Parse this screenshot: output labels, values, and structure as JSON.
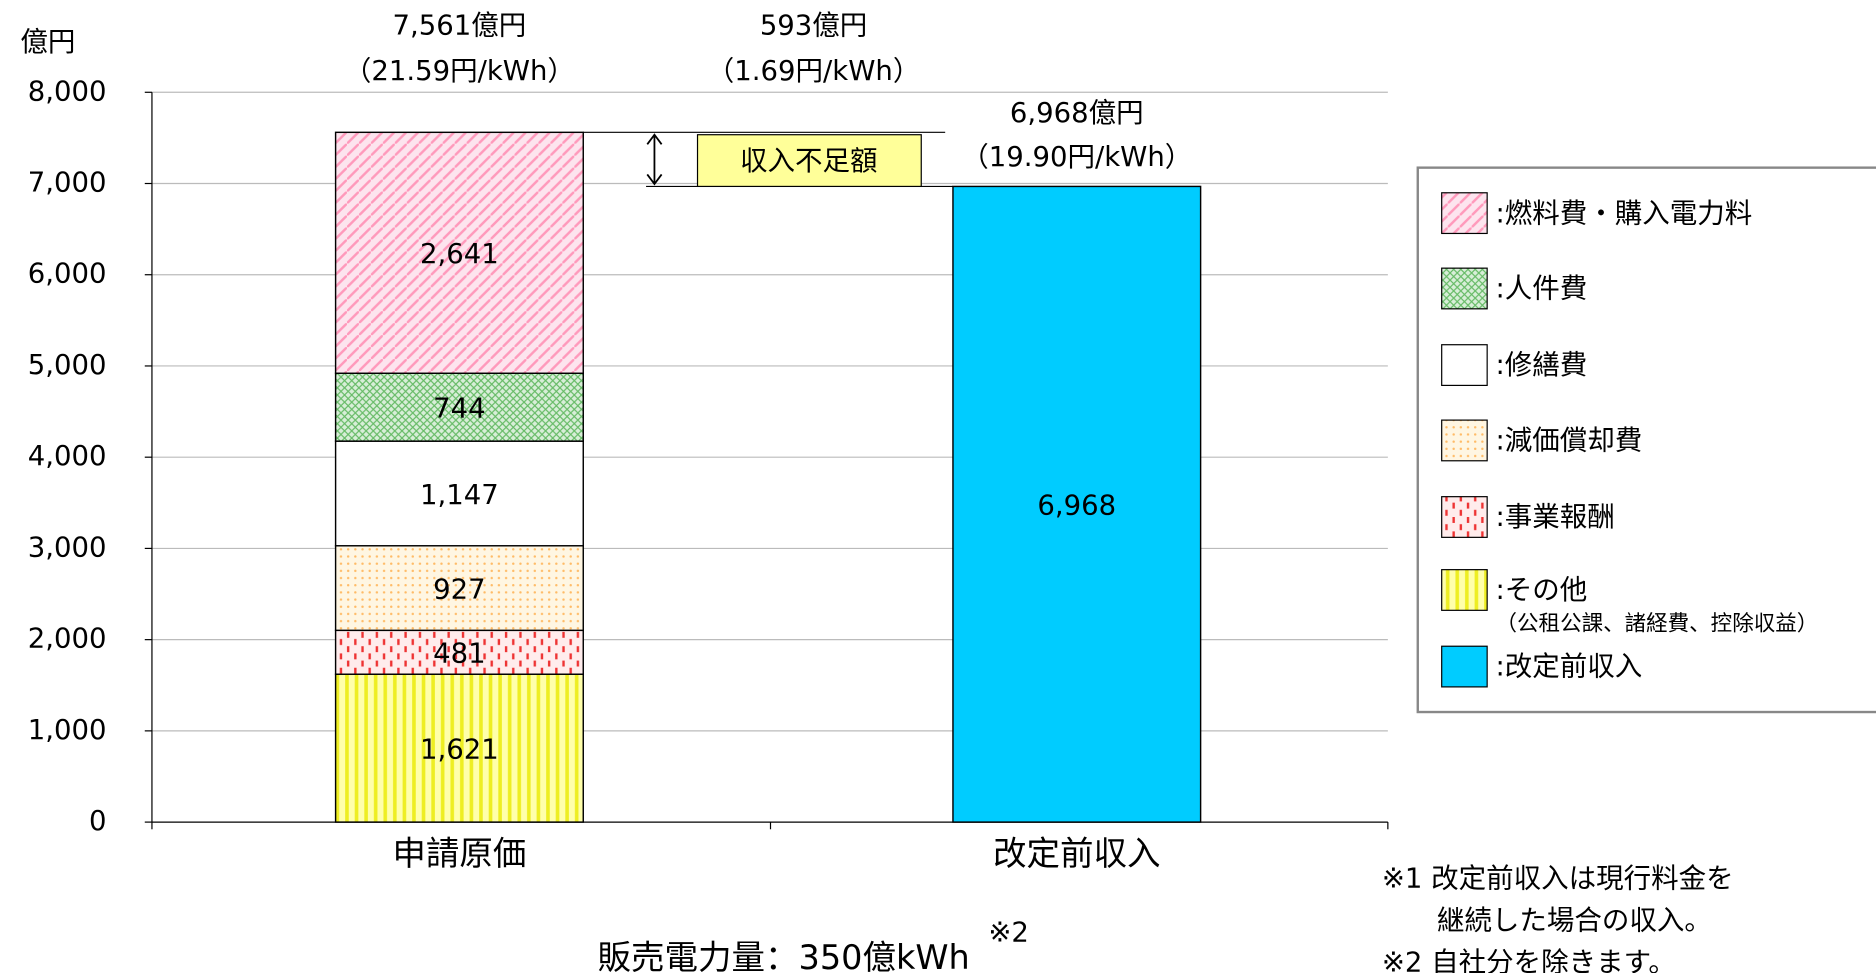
{
  "chart_data": {
    "type": "stacked_bar",
    "y_unit": "億円",
    "categories": [
      "申請原価",
      "改定前収入"
    ],
    "ylim": [
      0,
      8000
    ],
    "yticks": [
      0,
      {
        "value": 1000,
        "label": "1,000"
      },
      {
        "value": 2000,
        "label": "2,000"
      },
      {
        "value": 3000,
        "label": "3,000"
      },
      {
        "value": 4000,
        "label": "4,000"
      },
      {
        "value": 5000,
        "label": "5,000"
      },
      {
        "value": 6000,
        "label": "6,000"
      },
      {
        "value": 7000,
        "label": "7,000"
      },
      {
        "value": 8000,
        "label": "8,000"
      }
    ],
    "grid": true,
    "series": [
      {
        "name": ":その他",
        "legend_note": "（公租公課、諸経費、控除収益）",
        "color": "#ffff66",
        "pattern": "vertical-stripes",
        "values": [
          1621,
          null
        ],
        "value_labels": [
          "1,621",
          null
        ]
      },
      {
        "name": ":事業報酬",
        "color": "#ff9999",
        "pattern": "red-dashes",
        "values": [
          481,
          null
        ],
        "value_labels": [
          "481",
          null
        ]
      },
      {
        "name": ":減価償却費",
        "color": "#ffcc88",
        "pattern": "dots",
        "values": [
          927,
          null
        ],
        "value_labels": [
          "927",
          null
        ]
      },
      {
        "name": ":修繕費",
        "color": "#ffffff",
        "pattern": "none",
        "values": [
          1147,
          null
        ],
        "value_labels": [
          "1,147",
          null
        ]
      },
      {
        "name": ":人件費",
        "color": "#66bb66",
        "pattern": "crosshatch",
        "values": [
          744,
          null
        ],
        "value_labels": [
          "744",
          null
        ]
      },
      {
        "name": ":燃料費・購入電力料",
        "color": "#ffaacc",
        "pattern": "diagonal",
        "values": [
          2641,
          null
        ],
        "value_labels": [
          "2,641",
          null
        ]
      },
      {
        "name": ":改定前収入",
        "color": "#00ccff",
        "pattern": "none",
        "values": [
          null,
          6968
        ],
        "value_labels": [
          null,
          "6,968"
        ]
      }
    ],
    "annotations": {
      "total1": "7,561億円",
      "unit1": "（21.59円/kWh）",
      "gap": "593億円",
      "gap_unit": "（1.69円/kWh）",
      "total2": "6,968億円",
      "unit2": "（19.90円/kWh）",
      "gap_label": "収入不足額",
      "note_mark": "※1"
    },
    "x_label": "販売電力量：350億kWh",
    "x_label_note": "※2",
    "footnotes": [
      "※1 改定前収入は現行料金を",
      "　　継続した場合の収入。",
      "※2 自社分を除きます。"
    ]
  }
}
